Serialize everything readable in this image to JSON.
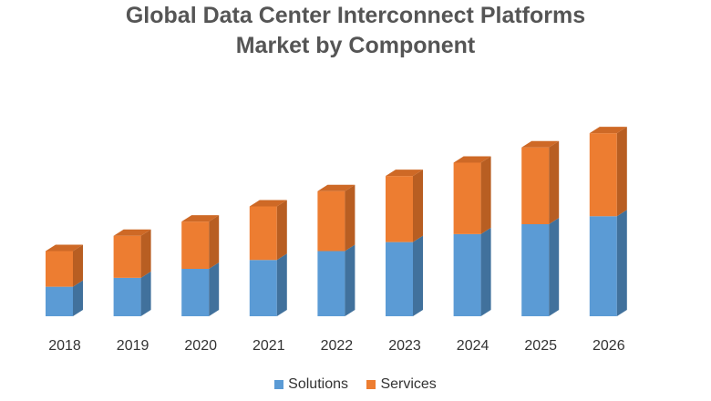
{
  "chart_data": {
    "type": "bar",
    "stacked": true,
    "style": "3d-column",
    "title_lines": [
      "Global Data Center Interconnect Platforms",
      "Market by Component"
    ],
    "xlabel": "",
    "ylabel": "",
    "categories": [
      "2018",
      "2019",
      "2020",
      "2021",
      "2022",
      "2023",
      "2024",
      "2025",
      "2026"
    ],
    "series": [
      {
        "name": "Solutions",
        "color": "#5B9BD5",
        "side_color": "#41719C",
        "values": [
          33,
          43,
          53,
          63,
          73,
          83,
          92,
          103,
          112
        ]
      },
      {
        "name": "Services",
        "color": "#ED7D31",
        "side_color": "#B85E22",
        "values": [
          40,
          47,
          53,
          60,
          67,
          74,
          80,
          86,
          93
        ]
      }
    ],
    "ylim": [
      0,
      230
    ],
    "grid": false,
    "y_axis_labels_visible": false,
    "legend_position": "bottom"
  }
}
